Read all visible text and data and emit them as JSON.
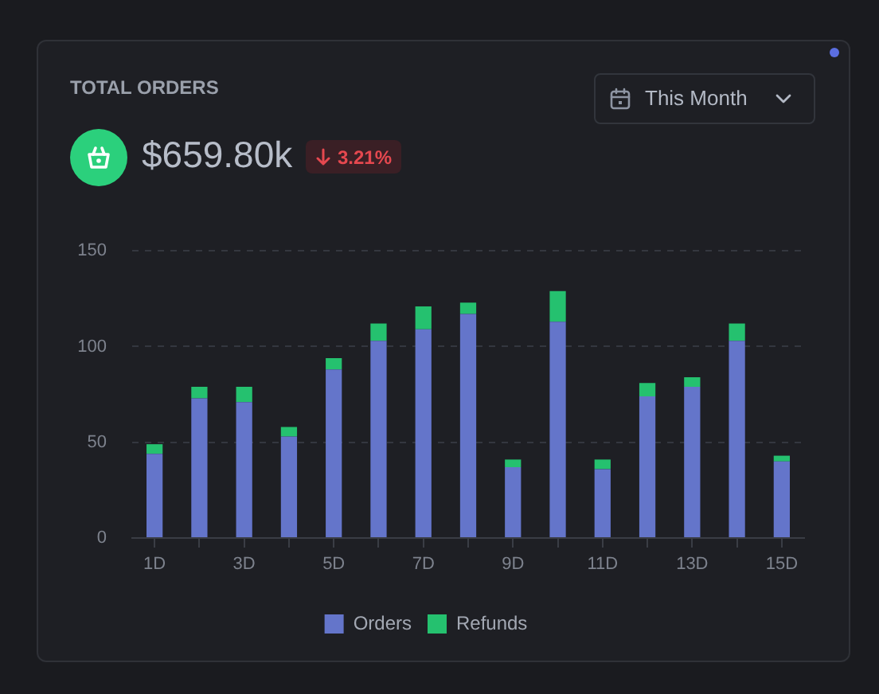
{
  "chart_data": {
    "type": "bar",
    "title": "TOTAL ORDERS",
    "subtitle": "$659.80k",
    "annotations": [
      "3.21%",
      "This Month"
    ],
    "categories": [
      "1D",
      null,
      "3D",
      null,
      "5D",
      null,
      "7D",
      null,
      "9D",
      null,
      "11D",
      null,
      "13D",
      null,
      "15D"
    ],
    "series": [
      {
        "name": "Orders",
        "color": "#6475ca",
        "values": [
          44,
          73,
          71,
          53,
          88,
          103,
          109,
          117,
          37,
          113,
          36,
          74,
          79,
          103,
          40
        ]
      },
      {
        "name": "Refunds",
        "color": "#25c16f",
        "values": [
          5,
          6,
          8,
          5,
          6,
          9,
          12,
          6,
          4,
          16,
          5,
          7,
          5,
          9,
          3
        ]
      }
    ],
    "stacked": true,
    "ylim": [
      0,
      150
    ],
    "yticks": [
      0,
      50,
      100,
      150
    ],
    "grid": "y",
    "legend": "bottom"
  }
}
